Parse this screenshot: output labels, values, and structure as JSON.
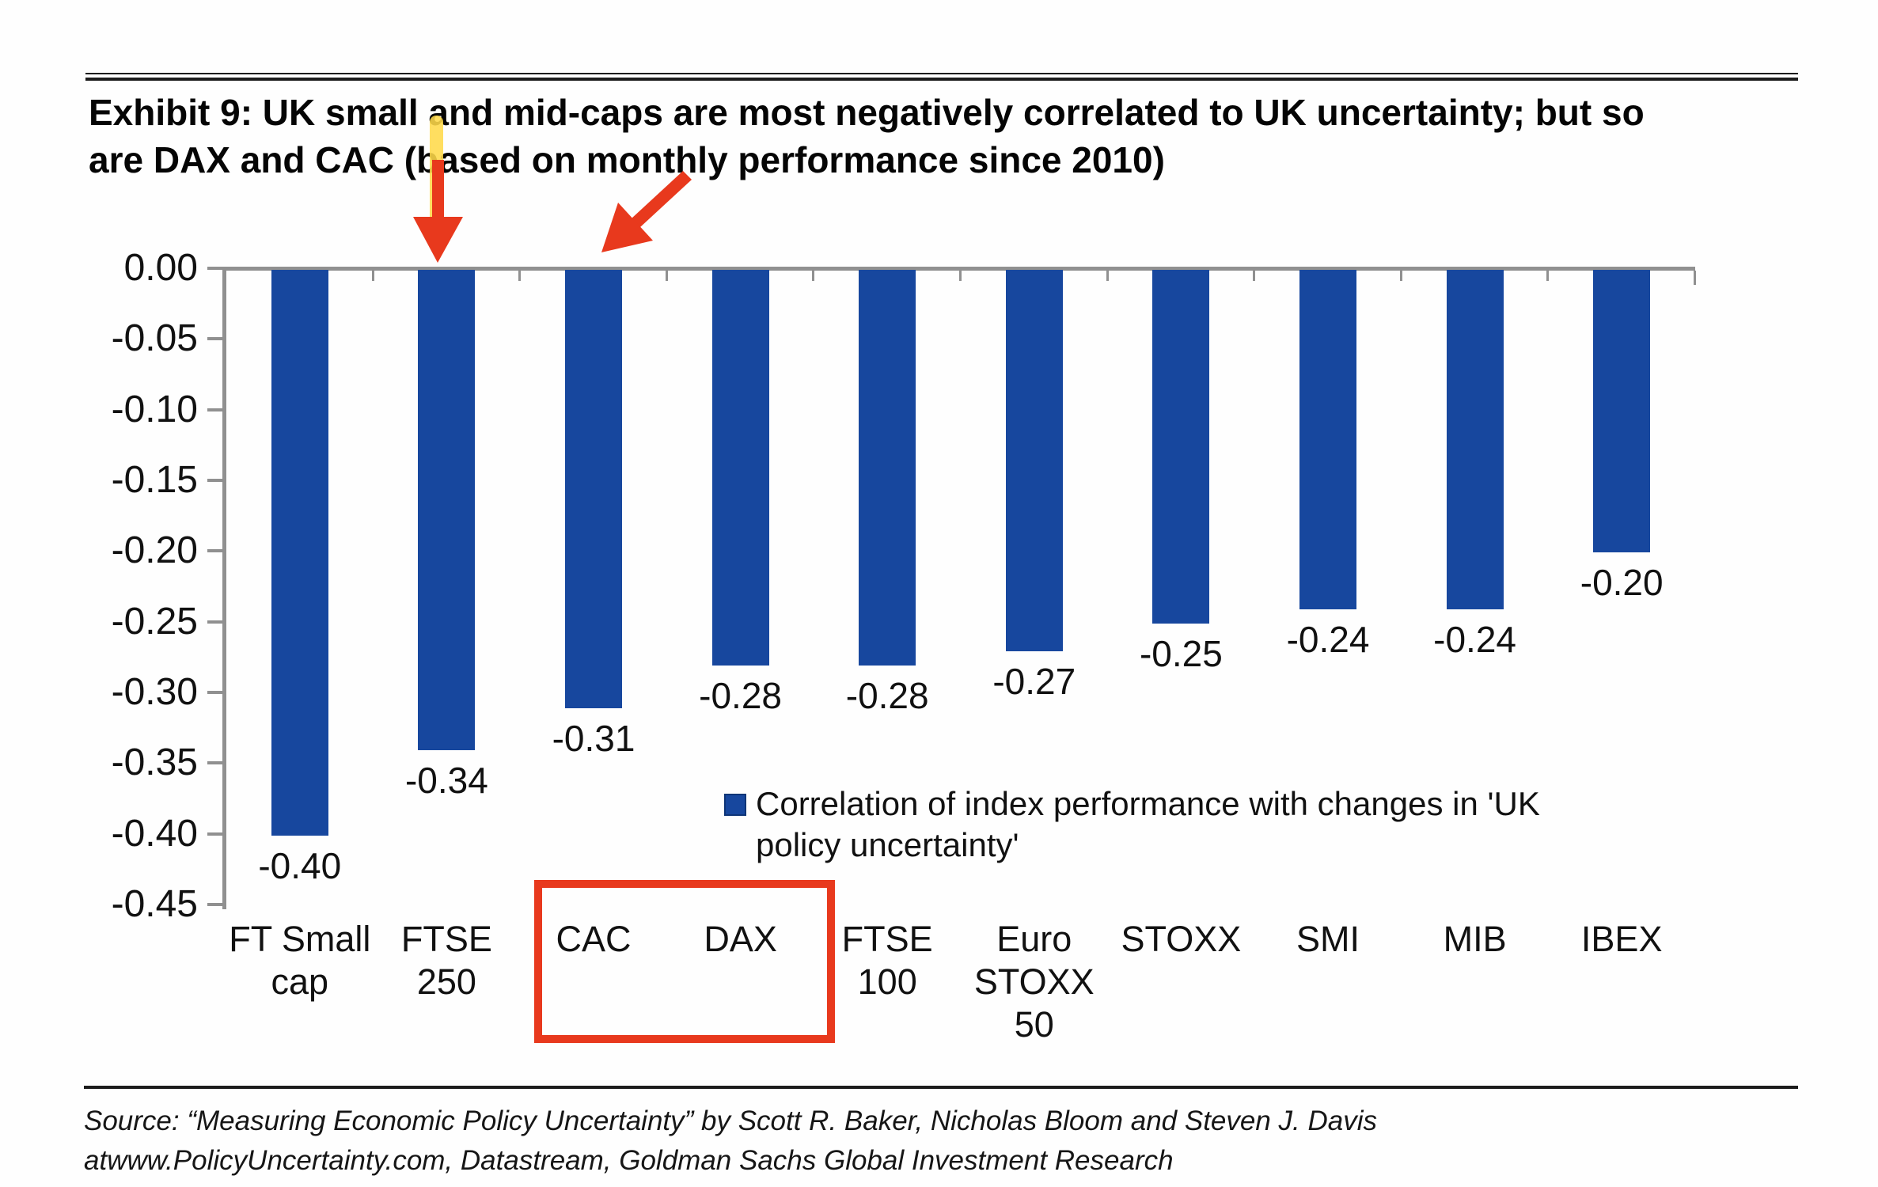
{
  "title": {
    "line1": "Exhibit 9: UK small and mid-caps are most negatively correlated to UK uncertainty; but so",
    "line2": "are DAX and CAC (based on monthly performance since 2010)"
  },
  "chart_data": {
    "type": "bar",
    "categories": [
      "FT Small cap",
      "FTSE 250",
      "CAC",
      "DAX",
      "FTSE 100",
      "Euro STOXX 50",
      "STOXX",
      "SMI",
      "MIB",
      "IBEX"
    ],
    "category_label_lines": [
      [
        "FT Small",
        "cap"
      ],
      [
        "FTSE",
        "250"
      ],
      [
        "CAC"
      ],
      [
        "DAX"
      ],
      [
        "FTSE",
        "100"
      ],
      [
        "Euro",
        "STOXX",
        "50"
      ],
      [
        "STOXX"
      ],
      [
        "SMI"
      ],
      [
        "MIB"
      ],
      [
        "IBEX"
      ]
    ],
    "values": [
      -0.4,
      -0.34,
      -0.31,
      -0.28,
      -0.28,
      -0.27,
      -0.25,
      -0.24,
      -0.24,
      -0.2
    ],
    "value_labels": [
      "-0.40",
      "-0.34",
      "-0.31",
      "-0.28",
      "-0.28",
      "-0.27",
      "-0.25",
      "-0.24",
      "-0.24",
      "-0.20"
    ],
    "y_ticks": [
      "0.00",
      "-0.05",
      "-0.10",
      "-0.15",
      "-0.20",
      "-0.25",
      "-0.30",
      "-0.35",
      "-0.40",
      "-0.45"
    ],
    "ylim": [
      0,
      -0.45
    ],
    "grid": "off",
    "legend_position": "inside-center-right",
    "series_name": "Correlation of index performance with changes in 'UK policy uncertainty'",
    "bar_color": "#17479e",
    "axis_color": "#909090"
  },
  "legend": {
    "text": "Correlation of index performance with changes in 'UK\npolicy uncertainty'"
  },
  "annotations": {
    "arrow_color": "#e8391d",
    "highlighter_color": "#ffd94a",
    "box_color": "#e8391d",
    "boxed_categories": "CAC, DAX",
    "arrow_targets": "FTSE 250, CAC"
  },
  "source": {
    "line1": "Source: “Measuring Economic Policy Uncertainty” by Scott R. Baker, Nicholas Bloom and Steven J. Davis",
    "line2": "atwww.PolicyUncertainty.com, Datastream, Goldman Sachs Global Investment Research"
  }
}
